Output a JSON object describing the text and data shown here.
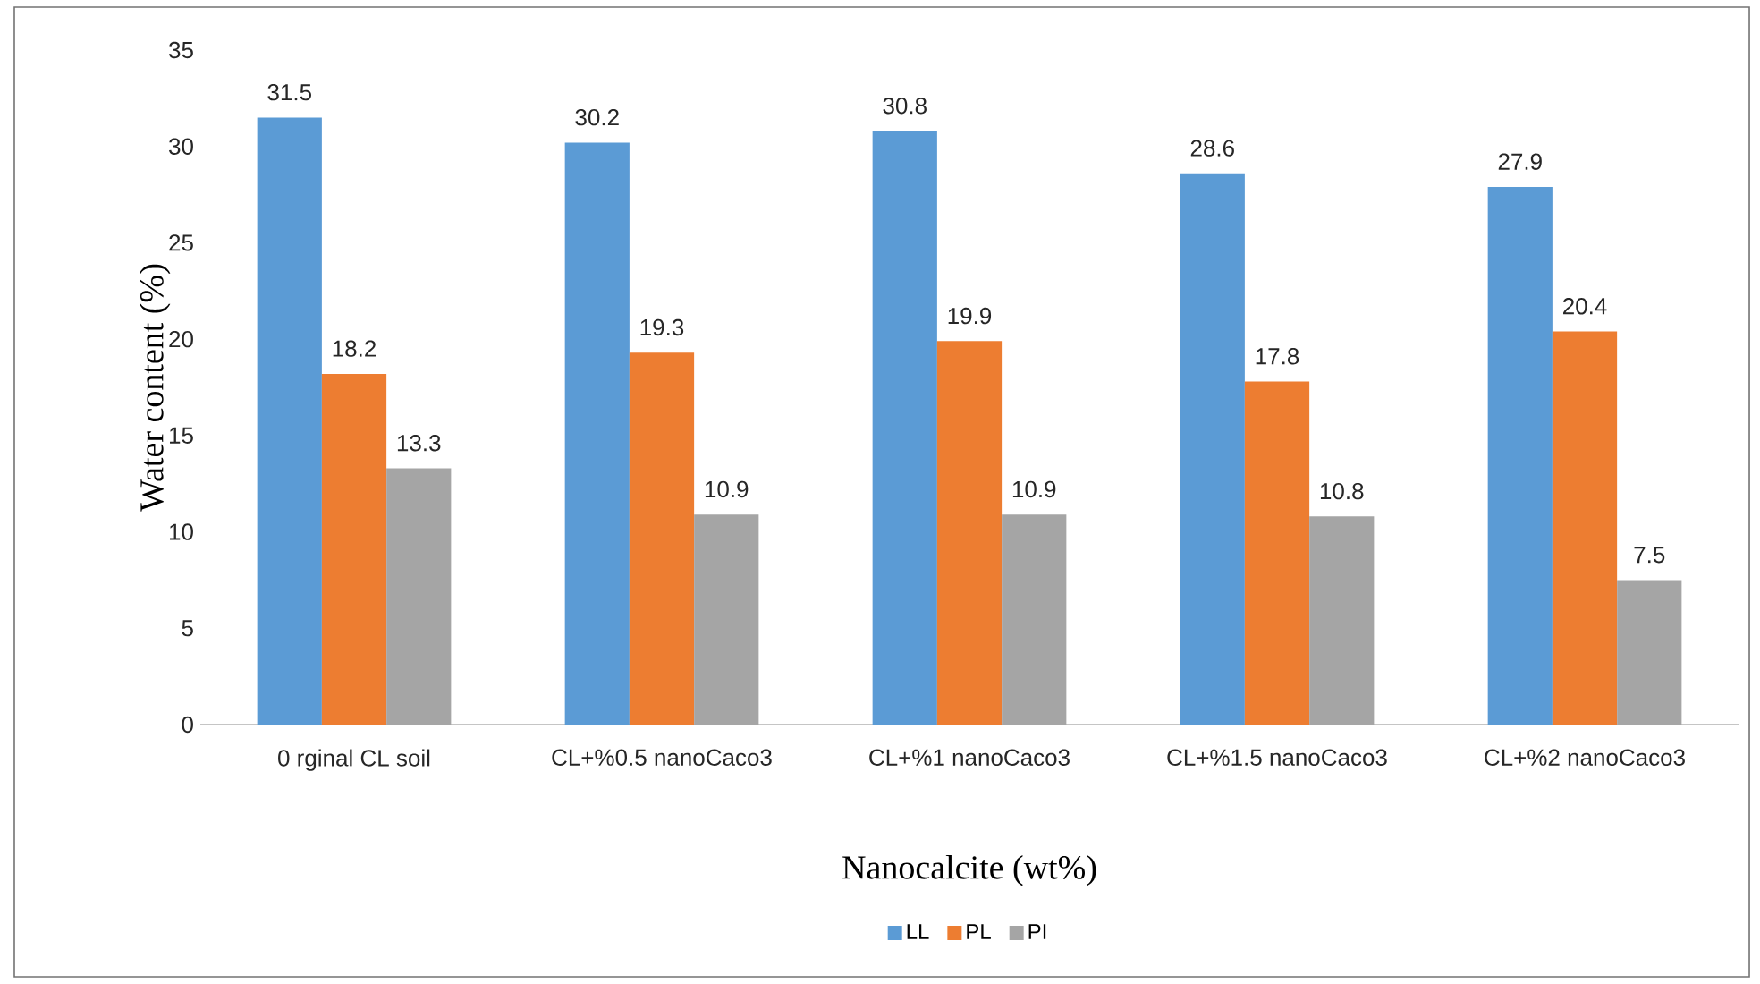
{
  "chart_data": {
    "type": "bar",
    "xlabel": "Nanocalcite (wt%)",
    "ylabel": "Water content (%)",
    "categories": [
      "0 rginal CL soil",
      "CL+%0.5 nanoCaco3",
      "CL+%1 nanoCaco3",
      "CL+%1.5 nanoCaco3",
      "CL+%2 nanoCaco3"
    ],
    "series": [
      {
        "name": "LL",
        "color": "#5b9bd5",
        "values": [
          31.5,
          30.2,
          30.8,
          28.6,
          27.9
        ]
      },
      {
        "name": "PL",
        "color": "#ed7d31",
        "values": [
          18.2,
          19.3,
          19.9,
          17.8,
          20.4
        ]
      },
      {
        "name": "PI",
        "color": "#a5a5a5",
        "values": [
          13.3,
          10.9,
          10.9,
          10.8,
          7.5
        ]
      }
    ],
    "ylim": [
      0,
      35
    ],
    "yticks": [
      0,
      5,
      10,
      15,
      20,
      25,
      30,
      35
    ],
    "grid": false,
    "legend": "bottom",
    "data_labels": true
  }
}
